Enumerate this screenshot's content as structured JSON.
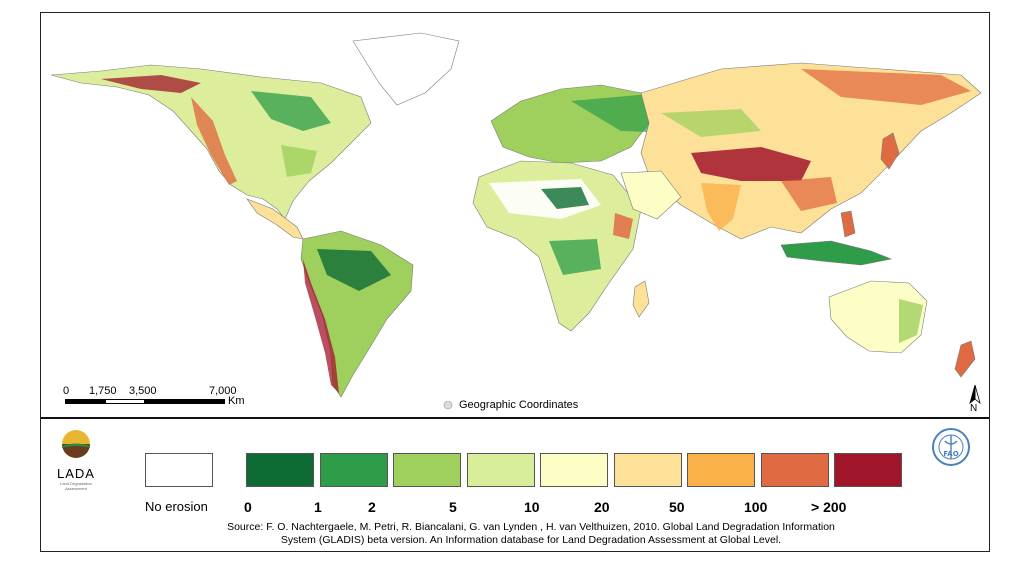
{
  "map": {
    "projection_label": "Geographic Coordinates",
    "scale": {
      "ticks": [
        "0",
        "1,750",
        "3,500",
        "7,000"
      ],
      "unit": "Km"
    },
    "north_label": "N"
  },
  "legend": {
    "no_erosion": {
      "label": "No erosion",
      "color": "#ffffff"
    },
    "classes": [
      {
        "color": "#0d6b33"
      },
      {
        "color": "#2e9c48"
      },
      {
        "color": "#9fd05e"
      },
      {
        "color": "#d9ee9a"
      },
      {
        "color": "#fdfdc6"
      },
      {
        "color": "#fde199"
      },
      {
        "color": "#fbb24a"
      },
      {
        "color": "#e06b42"
      },
      {
        "color": "#a1152a"
      }
    ],
    "break_labels": [
      "0",
      "1",
      "2",
      "5",
      "10",
      "20",
      "50",
      "100",
      "> 200"
    ]
  },
  "logos": {
    "lada_text": "LADA",
    "lada_subtitle": "Land Degradation Assessment",
    "fao_text": "FAO"
  },
  "source": {
    "line1": "Source: F. O. Nachtergaele, M. Petri, R. Biancalani, G. van Lynden , H. van Velthuizen, 2010. Global Land Degradation Information",
    "line2": "System (GLADIS) beta version. An Information database for Land Degradation Assessment at Global Level."
  }
}
